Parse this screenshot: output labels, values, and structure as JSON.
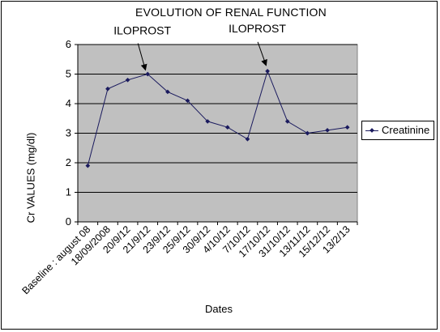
{
  "chart_data": {
    "type": "line",
    "title": "EVOLUTION OF RENAL FUNCTION",
    "xlabel": "Dates",
    "ylabel": "Cr VALUES  (mg/dl)",
    "ylim": [
      0,
      6
    ],
    "yticks": [
      0,
      1,
      2,
      3,
      4,
      5,
      6
    ],
    "categories": [
      "Baseline : august 08",
      "18/09/2008",
      "20/9/12",
      "21/9/12",
      "23/9/12",
      "25/9/12",
      "30/9/12",
      "4/10/12",
      "7/10/12",
      "17/10/12",
      "31/10/12",
      "13/11/12",
      "15/12/12",
      "13/2/13"
    ],
    "series": [
      {
        "name": "Creatinine",
        "values": [
          1.9,
          4.5,
          4.8,
          5.0,
          4.4,
          4.1,
          3.4,
          3.2,
          2.8,
          5.1,
          3.4,
          3.0,
          3.1,
          3.2
        ],
        "color": "#1a1a5e"
      }
    ],
    "annotations": [
      {
        "text": "ILOPROST",
        "category_index": 3,
        "value": 5.0
      },
      {
        "text": "ILOPROST",
        "category_index": 9,
        "value": 5.1
      }
    ],
    "grid": true,
    "plot_background": "#c0c0c0",
    "legend_position": "right"
  }
}
